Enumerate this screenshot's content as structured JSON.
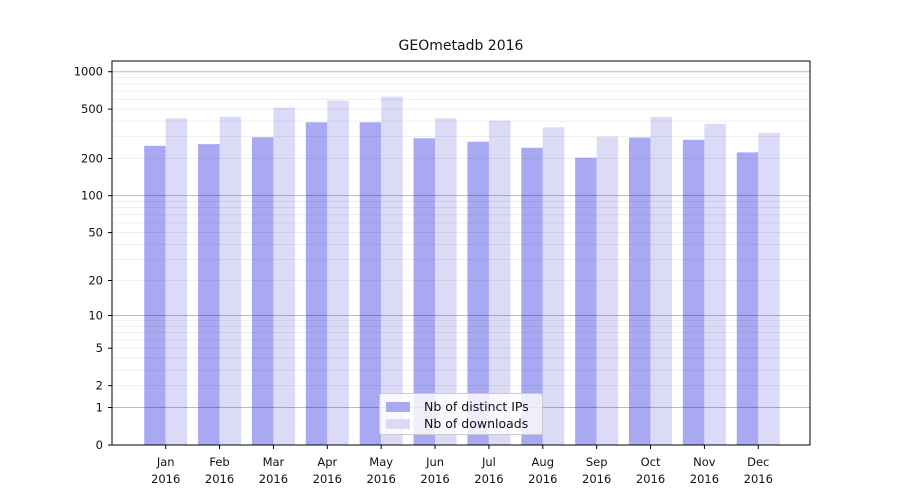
{
  "chart_data": {
    "type": "bar",
    "title": "GEOmetadb 2016",
    "scale": "log1p",
    "ylim": [
      0,
      1220
    ],
    "grid": true,
    "legend_position": "lower center",
    "x_year": "2016",
    "categories": [
      "Jan",
      "Feb",
      "Mar",
      "Apr",
      "May",
      "Jun",
      "Jul",
      "Aug",
      "Sep",
      "Oct",
      "Nov",
      "Dec"
    ],
    "y_ticks": [
      0,
      1,
      2,
      5,
      10,
      20,
      50,
      100,
      200,
      500,
      1000
    ],
    "series": [
      {
        "name": "Nb of distinct IPs",
        "color": "#a9a9f3",
        "values": [
          253,
          261,
          297,
          392,
          392,
          291,
          273,
          244,
          203,
          295,
          283,
          224
        ]
      },
      {
        "name": "Nb of downloads",
        "color": "#dbdbf8",
        "values": [
          422,
          435,
          515,
          585,
          630,
          422,
          404,
          357,
          300,
          432,
          380,
          322
        ]
      }
    ]
  }
}
